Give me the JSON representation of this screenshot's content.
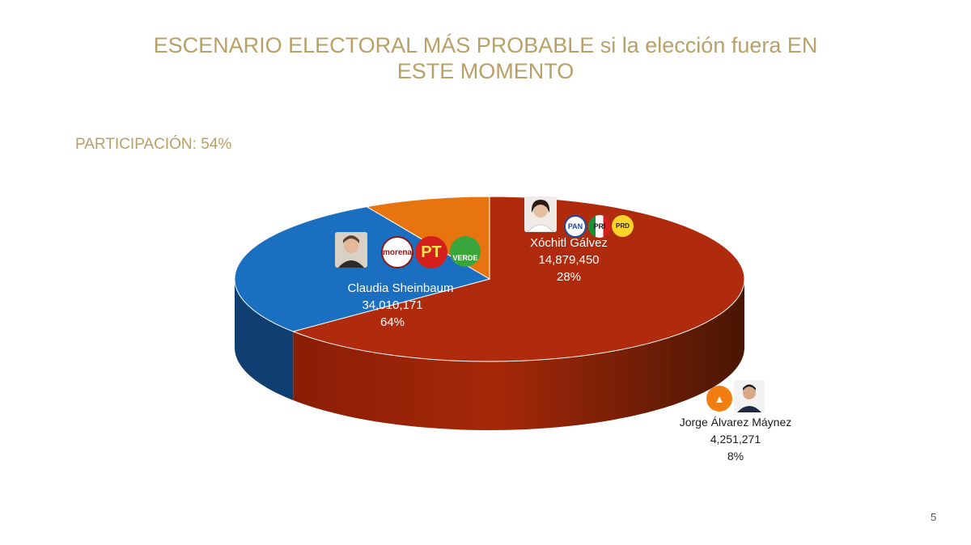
{
  "title": "ESCENARIO ELECTORAL MÁS PROBABLE si la elección fuera EN ESTE MOMENTO",
  "participation": "PARTICIPACIÓN: 54%",
  "page_number": "5",
  "colors": {
    "title": "#b8a067",
    "sheinbaum": "#b02a0e",
    "galvez": "#1a6fc0",
    "maynez": "#e8740f"
  },
  "chart_data": {
    "type": "pie",
    "style": "3d",
    "title": "ESCENARIO ELECTORAL MÁS PROBABLE si la elección fuera EN ESTE MOMENTO",
    "subtitle": "PARTICIPACIÓN: 54%",
    "slices": [
      {
        "label": "Claudia Sheinbaum",
        "votes": "34,010,171",
        "value": 64,
        "pct": "64%",
        "color": "#b02a0e",
        "parties": [
          "morena",
          "PT",
          "VERDE"
        ]
      },
      {
        "label": "Xóchitl Gálvez",
        "votes": "14,879,450",
        "value": 28,
        "pct": "28%",
        "color": "#1a6fc0",
        "parties": [
          "PAN",
          "PRI",
          "PRD"
        ]
      },
      {
        "label": "Jorge Álvarez Máynez",
        "votes": "4,251,271",
        "value": 8,
        "pct": "8%",
        "color": "#e8740f",
        "parties": [
          "MC"
        ]
      }
    ]
  }
}
